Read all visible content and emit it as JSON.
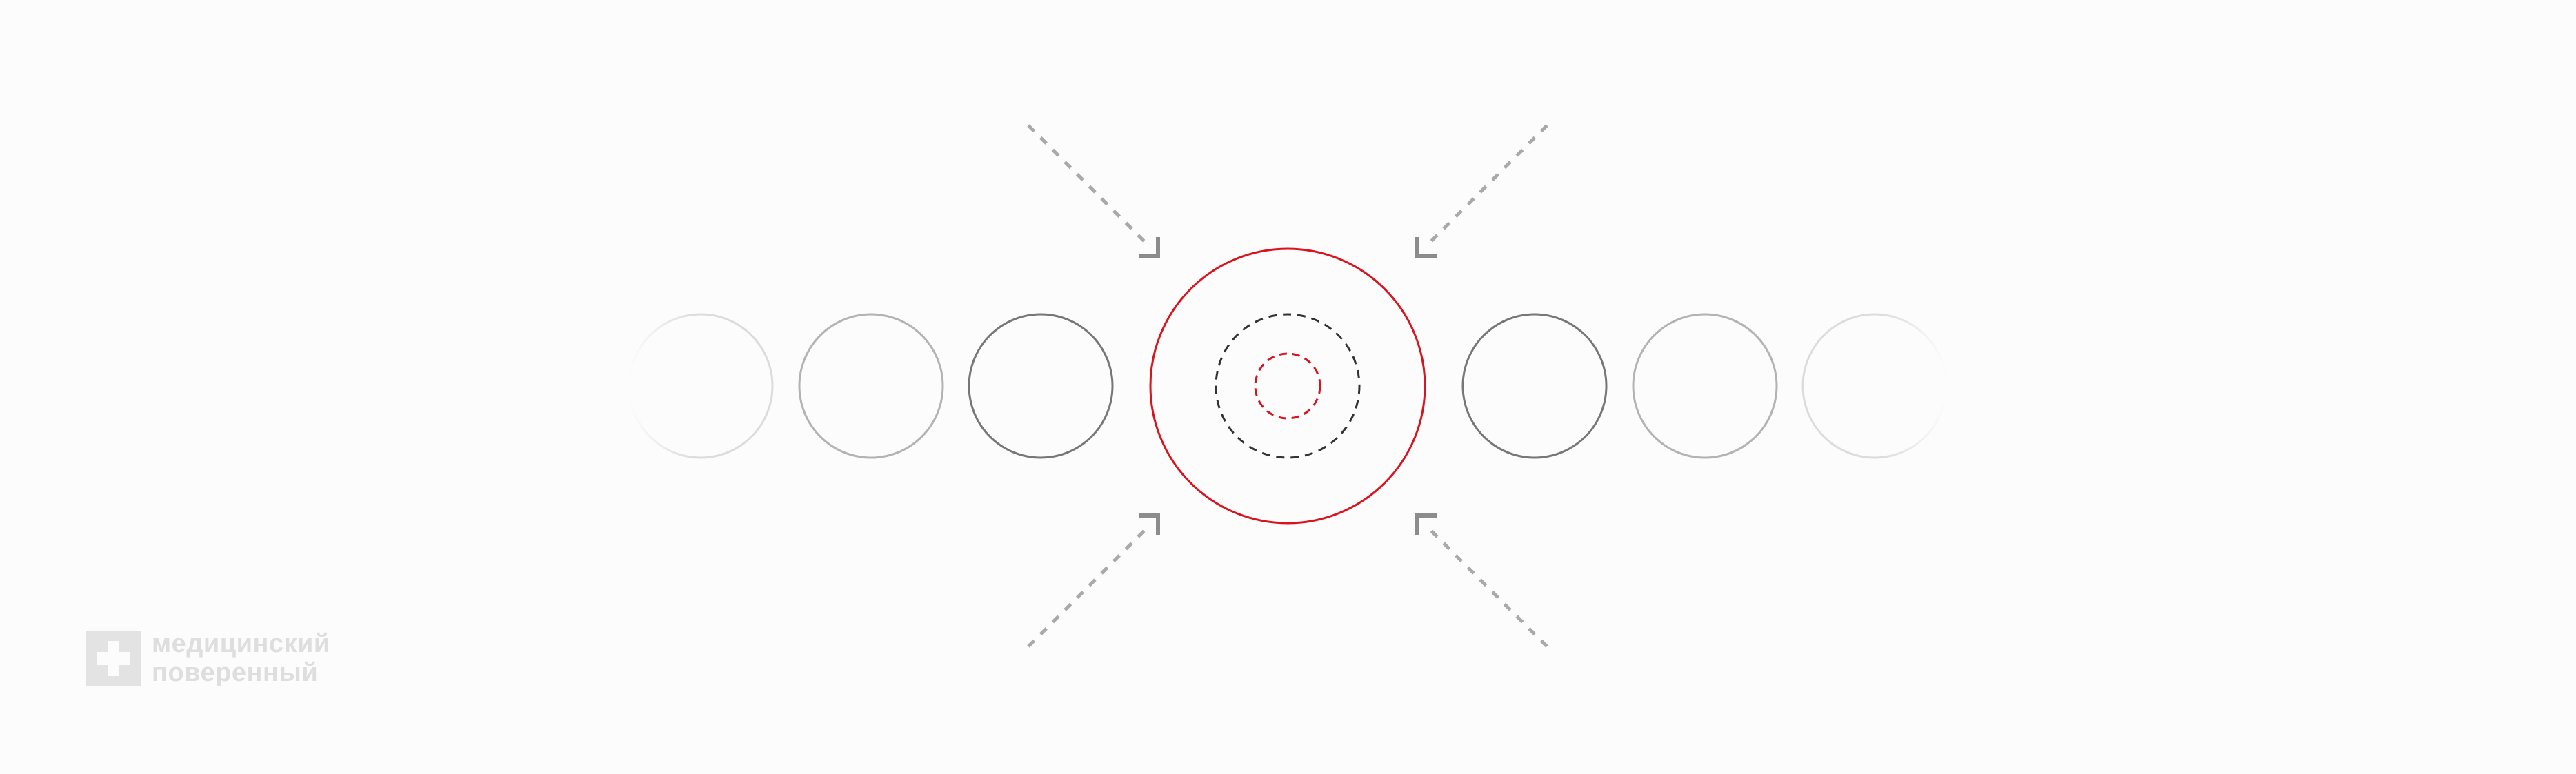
{
  "diagram": {
    "description_labels": [],
    "colors": {
      "background": "#fcfcfc",
      "focus_ring": "#d8141f",
      "inner_dashed_dark": "#333333",
      "inner_dashed_red": "#d8141f",
      "neighbor_near": "#777777",
      "neighbor_mid": "#b3b3b3",
      "neighbor_far": "#dcdcdc",
      "arrow_head": "#8c8c8c",
      "arrow_shaft": "#a9a9a9",
      "logo": "#dedede"
    },
    "left_circles": [
      {
        "name": "left-circle-far",
        "level": "far"
      },
      {
        "name": "left-circle-mid",
        "level": "mid"
      },
      {
        "name": "left-circle-near",
        "level": "near"
      }
    ],
    "right_circles": [
      {
        "name": "right-circle-near",
        "level": "near"
      },
      {
        "name": "right-circle-mid",
        "level": "mid"
      },
      {
        "name": "right-circle-far",
        "level": "far"
      }
    ],
    "arrows": [
      {
        "name": "arrow-top-left",
        "direction": "down-right"
      },
      {
        "name": "arrow-top-right",
        "direction": "down-left"
      },
      {
        "name": "arrow-bottom-left",
        "direction": "up-right"
      },
      {
        "name": "arrow-bottom-right",
        "direction": "up-left"
      }
    ]
  },
  "logo": {
    "icon": "medical-cross-icon",
    "line1": "медицинский",
    "line2": "поверенный"
  }
}
